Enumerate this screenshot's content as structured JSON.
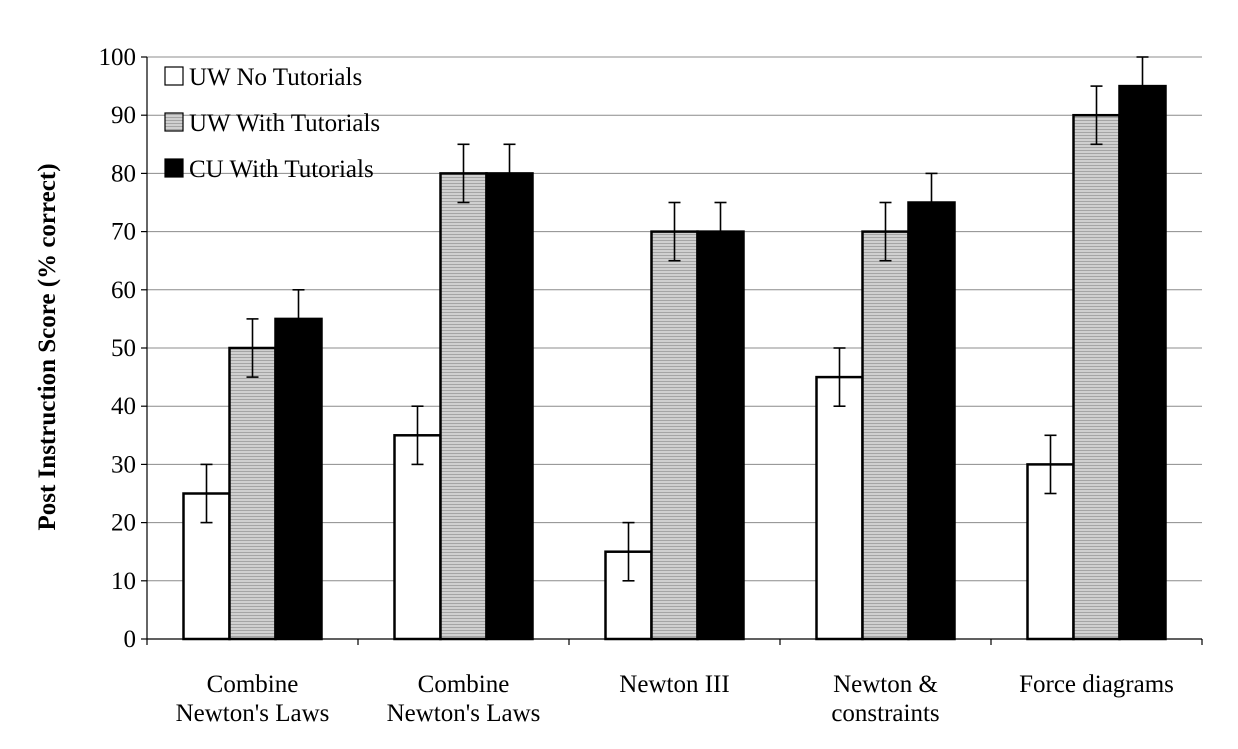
{
  "chart_data": {
    "type": "bar",
    "title": "",
    "xlabel": "",
    "ylabel": "Post Instruction Score (% correct)",
    "ylim": [
      0,
      100
    ],
    "ytick_step": 10,
    "grid": true,
    "legend_position": "top-left",
    "categories": [
      [
        "Combine",
        "Newton's Laws"
      ],
      [
        "Combine",
        "Newton's Laws"
      ],
      [
        "Newton III"
      ],
      [
        "Newton &",
        "constraints"
      ],
      [
        "Force diagrams"
      ]
    ],
    "series": [
      {
        "name": "UW No Tutorials",
        "color": "#ffffff",
        "values": [
          25,
          35,
          15,
          45,
          30
        ],
        "errors": [
          5,
          5,
          5,
          5,
          5
        ]
      },
      {
        "name": "UW With Tutorials",
        "color": "#cccccc",
        "values": [
          50,
          80,
          70,
          70,
          90
        ],
        "errors": [
          5,
          5,
          5,
          5,
          5
        ]
      },
      {
        "name": "CU With Tutorials",
        "color": "#000000",
        "values": [
          55,
          80,
          70,
          75,
          95
        ],
        "errors": [
          5,
          5,
          5,
          5,
          5
        ]
      }
    ]
  }
}
